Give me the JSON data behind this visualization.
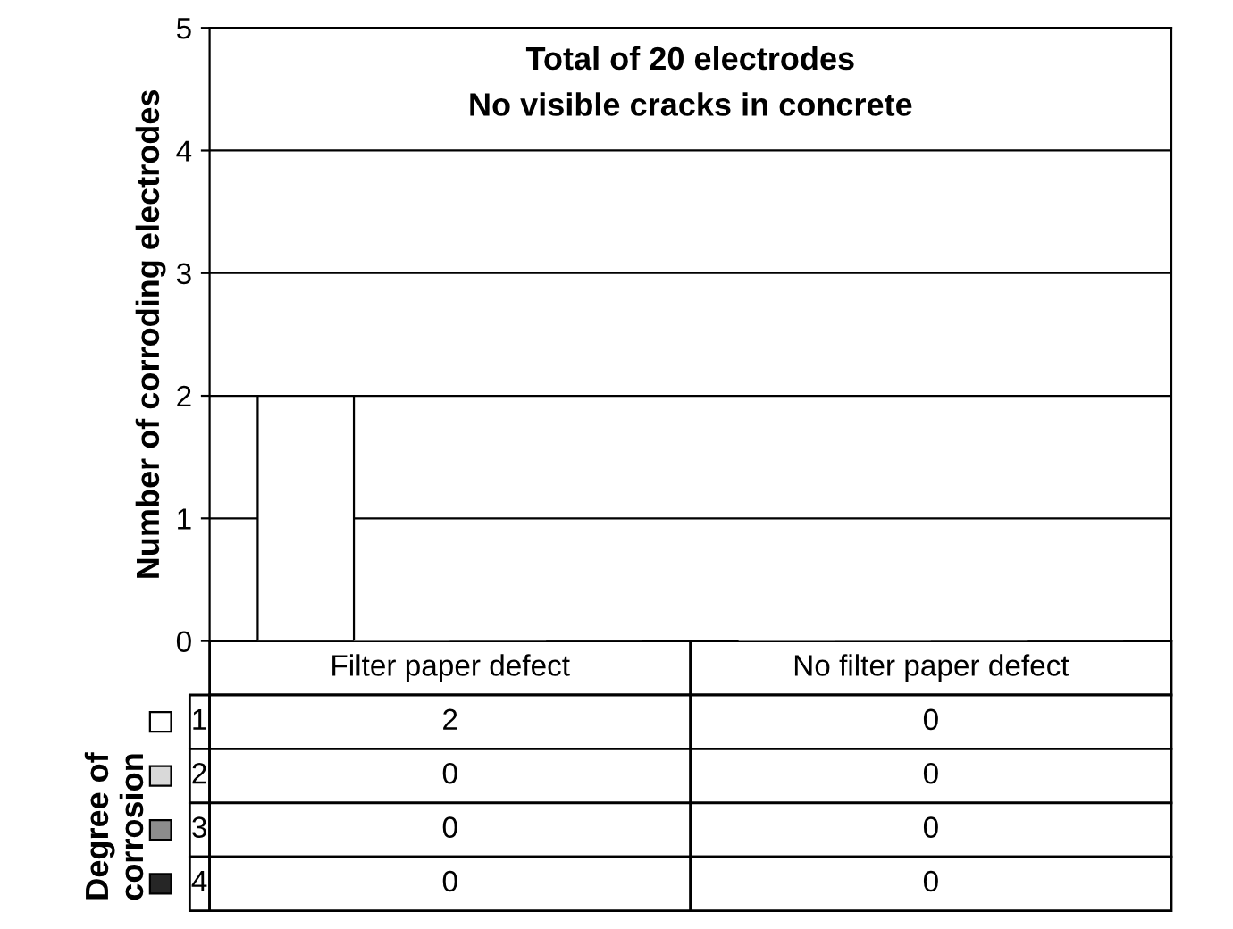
{
  "chart_data": {
    "type": "bar",
    "ylabel": "Number of corroding electrodes",
    "legend_title": "Degree of corrosion",
    "annotations": [
      "Total of 20 electrodes",
      "No visible cracks in concrete"
    ],
    "categories": [
      "Filter paper defect",
      "No filter paper defect"
    ],
    "series": [
      {
        "name": "1",
        "color": "#ffffff",
        "values": [
          2,
          0
        ]
      },
      {
        "name": "2",
        "color": "#d9d9d9",
        "values": [
          0,
          0
        ]
      },
      {
        "name": "3",
        "color": "#8c8c8c",
        "values": [
          0,
          0
        ]
      },
      {
        "name": "4",
        "color": "#262626",
        "values": [
          0,
          0
        ]
      }
    ],
    "ylim": [
      0,
      5
    ],
    "yticks": [
      0,
      1,
      2,
      3,
      4,
      5
    ],
    "grid": "y",
    "data_labels": true,
    "legend": "bottom left"
  }
}
